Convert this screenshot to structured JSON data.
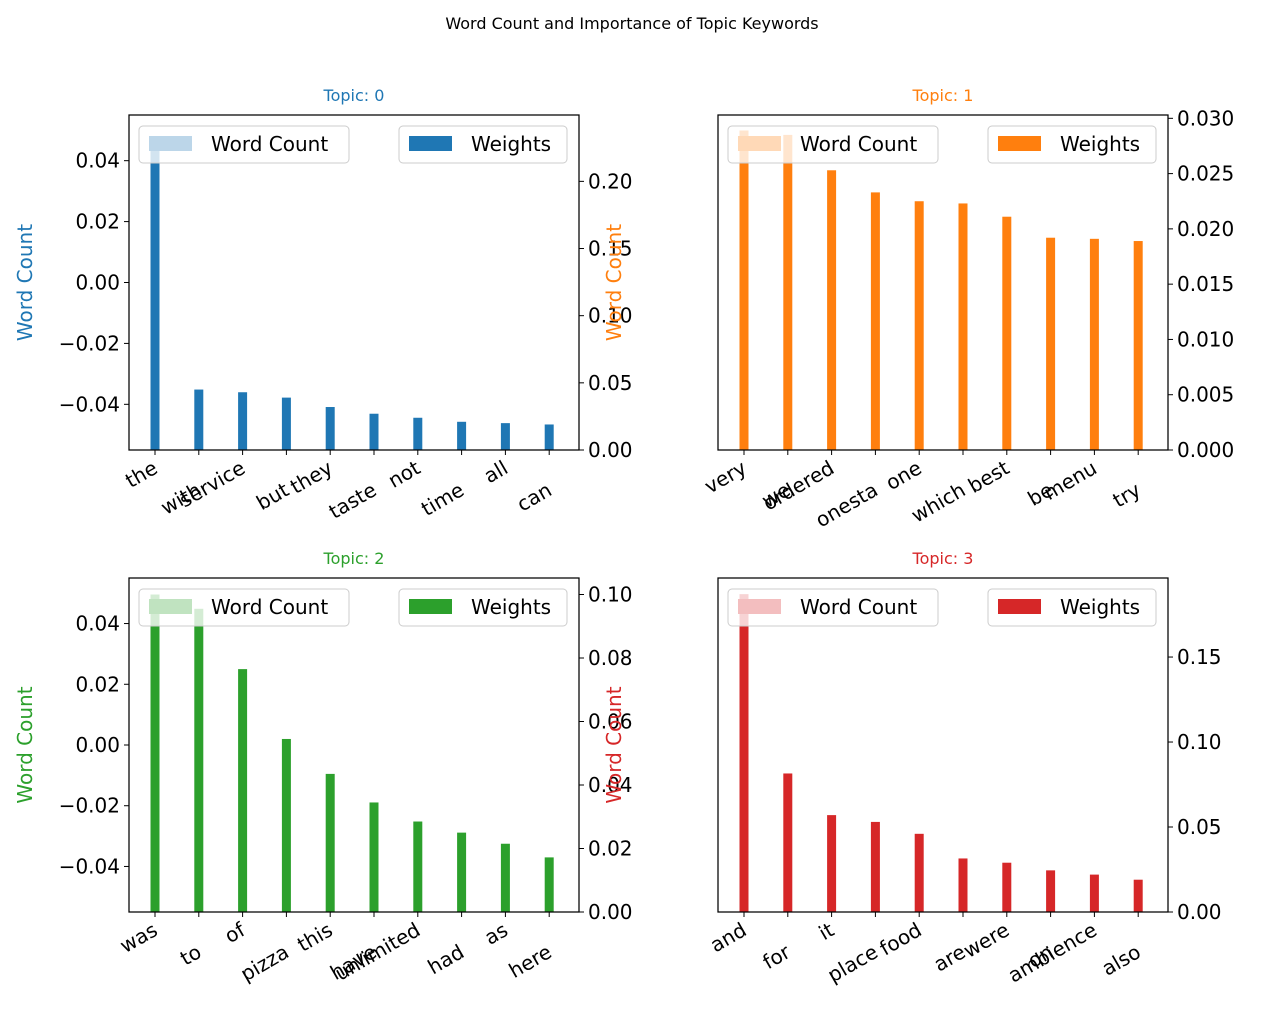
{
  "figure": {
    "title": "Word Count and Importance of Topic Keywords"
  },
  "legend_labels": {
    "count": "Word Count",
    "weight": "Weights"
  },
  "chart_data": [
    {
      "type": "bar",
      "title": "Topic: 0",
      "color": "#1f77b4",
      "ylabel": "Word Count",
      "categories": [
        "the",
        "with",
        "service",
        "but",
        "they",
        "taste",
        "not",
        "time",
        "all",
        "can"
      ],
      "series": [
        {
          "name": "Word Count",
          "values": [
            0,
            0,
            0,
            0,
            0,
            0,
            0,
            0,
            0,
            0
          ]
        },
        {
          "name": "Weights",
          "values": [
            0.232,
            0.045,
            0.043,
            0.039,
            0.032,
            0.027,
            0.024,
            0.021,
            0.02,
            0.019
          ]
        }
      ],
      "left_ylim": [
        -0.055,
        0.055
      ],
      "left_ticks": [
        0.04,
        0.02,
        0.0,
        -0.02,
        -0.04
      ],
      "left_tick_labels": [
        "0.04",
        "0.02",
        "0.00",
        "−0.02",
        "−0.04"
      ],
      "right_ylim": [
        0,
        0.2494
      ],
      "right_ticks": [
        0.0,
        0.05,
        0.1,
        0.15,
        0.2
      ],
      "right_tick_labels": [
        "0.00",
        "0.05",
        "0.10",
        "0.15",
        "0.20"
      ],
      "legend": "top"
    },
    {
      "type": "bar",
      "title": "Topic: 1",
      "color": "#ff7f0e",
      "ylabel": "Word Count",
      "categories": [
        "very",
        "we",
        "ordered",
        "onesta",
        "one",
        "which",
        "best",
        "be",
        "menu",
        "try"
      ],
      "series": [
        {
          "name": "Word Count",
          "values": [
            0,
            0,
            0,
            0,
            0,
            0,
            0,
            0,
            0,
            0
          ]
        },
        {
          "name": "Weights",
          "values": [
            0.0289,
            0.0285,
            0.0253,
            0.0233,
            0.0225,
            0.0223,
            0.0211,
            0.0192,
            0.0191,
            0.0189
          ]
        }
      ],
      "left_ylim": [
        -0.055,
        0.055
      ],
      "left_ticks": [],
      "left_tick_labels": [],
      "right_ylim": [
        0,
        0.0303
      ],
      "right_ticks": [
        0.0,
        0.005,
        0.01,
        0.015,
        0.02,
        0.025,
        0.03
      ],
      "right_tick_labels": [
        "0.000",
        "0.005",
        "0.010",
        "0.015",
        "0.020",
        "0.025",
        "0.030"
      ],
      "legend": "top"
    },
    {
      "type": "bar",
      "title": "Topic: 2",
      "color": "#2ca02c",
      "ylabel": "Word Count",
      "categories": [
        "was",
        "to",
        "of",
        "pizza",
        "this",
        "have",
        "unlimited",
        "had",
        "as",
        "here"
      ],
      "series": [
        {
          "name": "Word Count",
          "values": [
            0,
            0,
            0,
            0,
            0,
            0,
            0,
            0,
            0,
            0
          ]
        },
        {
          "name": "Weights",
          "values": [
            0.1,
            0.0955,
            0.0765,
            0.0545,
            0.0435,
            0.0345,
            0.0285,
            0.025,
            0.0215,
            0.0172
          ]
        }
      ],
      "left_ylim": [
        -0.055,
        0.055
      ],
      "left_ticks": [
        0.04,
        0.02,
        0.0,
        -0.02,
        -0.04
      ],
      "left_tick_labels": [
        "0.04",
        "0.02",
        "0.00",
        "−0.02",
        "−0.04"
      ],
      "right_ylim": [
        0,
        0.1052
      ],
      "right_ticks": [
        0.0,
        0.02,
        0.04,
        0.06,
        0.08,
        0.1
      ],
      "right_tick_labels": [
        "0.00",
        "0.02",
        "0.04",
        "0.06",
        "0.08",
        "0.10"
      ],
      "legend": "top"
    },
    {
      "type": "bar",
      "title": "Topic: 3",
      "color": "#d62728",
      "ylabel": "Word Count",
      "categories": [
        "and",
        "for",
        "it",
        "place",
        "food",
        "are",
        "were",
        "on",
        "ambience",
        "also"
      ],
      "series": [
        {
          "name": "Word Count",
          "values": [
            0,
            0,
            0,
            0,
            0,
            0,
            0,
            0,
            0,
            0
          ]
        },
        {
          "name": "Weights",
          "values": [
            0.187,
            0.0815,
            0.057,
            0.053,
            0.046,
            0.0315,
            0.029,
            0.0245,
            0.022,
            0.019
          ]
        }
      ],
      "left_ylim": [
        -0.055,
        0.055
      ],
      "left_ticks": [],
      "left_tick_labels": [],
      "right_ylim": [
        0,
        0.1965
      ],
      "right_ticks": [
        0.0,
        0.05,
        0.1,
        0.15
      ],
      "right_tick_labels": [
        "0.00",
        "0.05",
        "0.10",
        "0.15"
      ],
      "legend": "top"
    }
  ]
}
